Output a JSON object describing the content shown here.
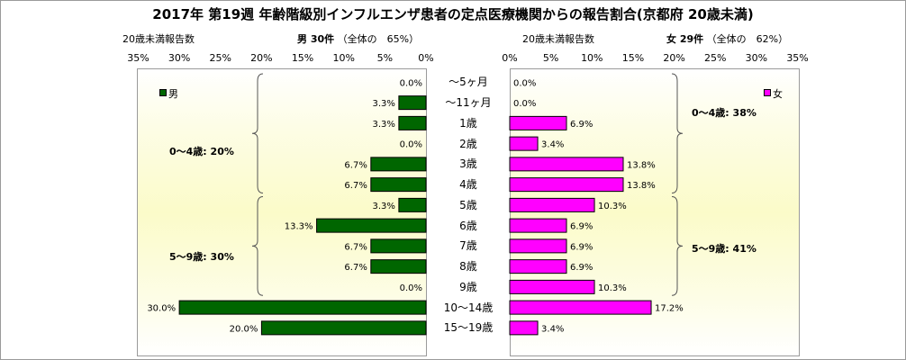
{
  "title": "2017年 第19週 年齢階級別インフルエンザ患者の定点医療機関からの報告割合(京都府 20歳未満)",
  "left_header": {
    "count_label": "20歳未満報告数",
    "sex_count": "男 30件",
    "share": "（全体の　65%）"
  },
  "right_header": {
    "count_label": "20歳未満報告数",
    "sex_count": "女 29件",
    "share": "（全体の　62%）"
  },
  "axis_ticks_left": [
    "35%",
    "30%",
    "25%",
    "20%",
    "15%",
    "10%",
    "5%",
    "0%"
  ],
  "axis_ticks_right": [
    "0%",
    "5%",
    "10%",
    "15%",
    "20%",
    "25%",
    "30%",
    "35%"
  ],
  "legend": {
    "male": "男",
    "female": "女"
  },
  "group_labels": {
    "male_0_4": "0～4歳: 20%",
    "male_5_9": "5～9歳: 30%",
    "female_0_4": "0～4歳: 38%",
    "female_5_9": "5～9歳: 41%"
  },
  "chart_data": {
    "type": "bar",
    "title": "2017年 第19週 年齢階級別インフルエンザ患者の定点医療機関からの報告割合(京都府 20歳未満)",
    "categories": [
      "～5ヶ月",
      "～11ヶ月",
      "1歳",
      "2歳",
      "3歳",
      "4歳",
      "5歳",
      "6歳",
      "7歳",
      "8歳",
      "9歳",
      "10～14歳",
      "15～19歳"
    ],
    "series": [
      {
        "name": "男",
        "values": [
          0.0,
          3.3,
          3.3,
          0.0,
          6.7,
          6.7,
          3.3,
          13.3,
          6.7,
          6.7,
          0.0,
          30.0,
          20.0
        ],
        "labels": [
          "0.0%",
          "3.3%",
          "3.3%",
          "0.0%",
          "6.7%",
          "6.7%",
          "3.3%",
          "13.3%",
          "6.7%",
          "6.7%",
          "0.0%",
          "30.0%",
          "20.0%"
        ],
        "color": "#006600"
      },
      {
        "name": "女",
        "values": [
          0.0,
          0.0,
          6.9,
          3.4,
          13.8,
          13.8,
          10.3,
          6.9,
          6.9,
          6.9,
          10.3,
          17.2,
          3.4
        ],
        "labels": [
          "0.0%",
          "0.0%",
          "6.9%",
          "3.4%",
          "13.8%",
          "13.8%",
          "10.3%",
          "6.9%",
          "6.9%",
          "6.9%",
          "10.3%",
          "17.2%",
          "3.4%"
        ],
        "color": "#ff00ff"
      }
    ],
    "xlim": [
      0,
      35
    ],
    "unit": "%",
    "grid": false,
    "legend_placement": "top-left / top-right"
  }
}
